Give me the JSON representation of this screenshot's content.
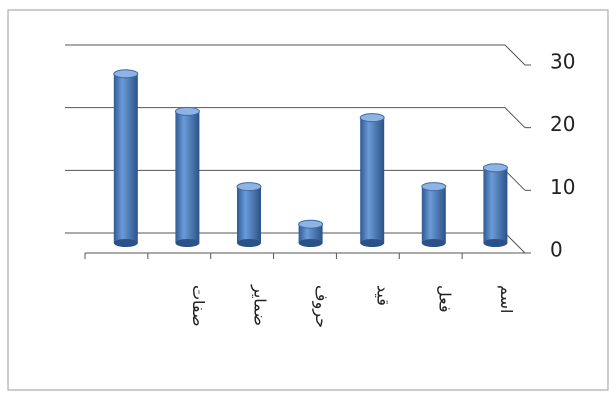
{
  "chart_data": {
    "type": "bar",
    "categories": [
      null,
      "صفات",
      "ضمایر",
      "حروف",
      "قید",
      "فعل",
      "اسم"
    ],
    "values": [
      27,
      21,
      9,
      3,
      20,
      9,
      12
    ],
    "color": "#4f81bd",
    "ylim": [
      0,
      30
    ],
    "yticks": [
      0,
      10,
      20,
      30
    ],
    "grid": true
  }
}
